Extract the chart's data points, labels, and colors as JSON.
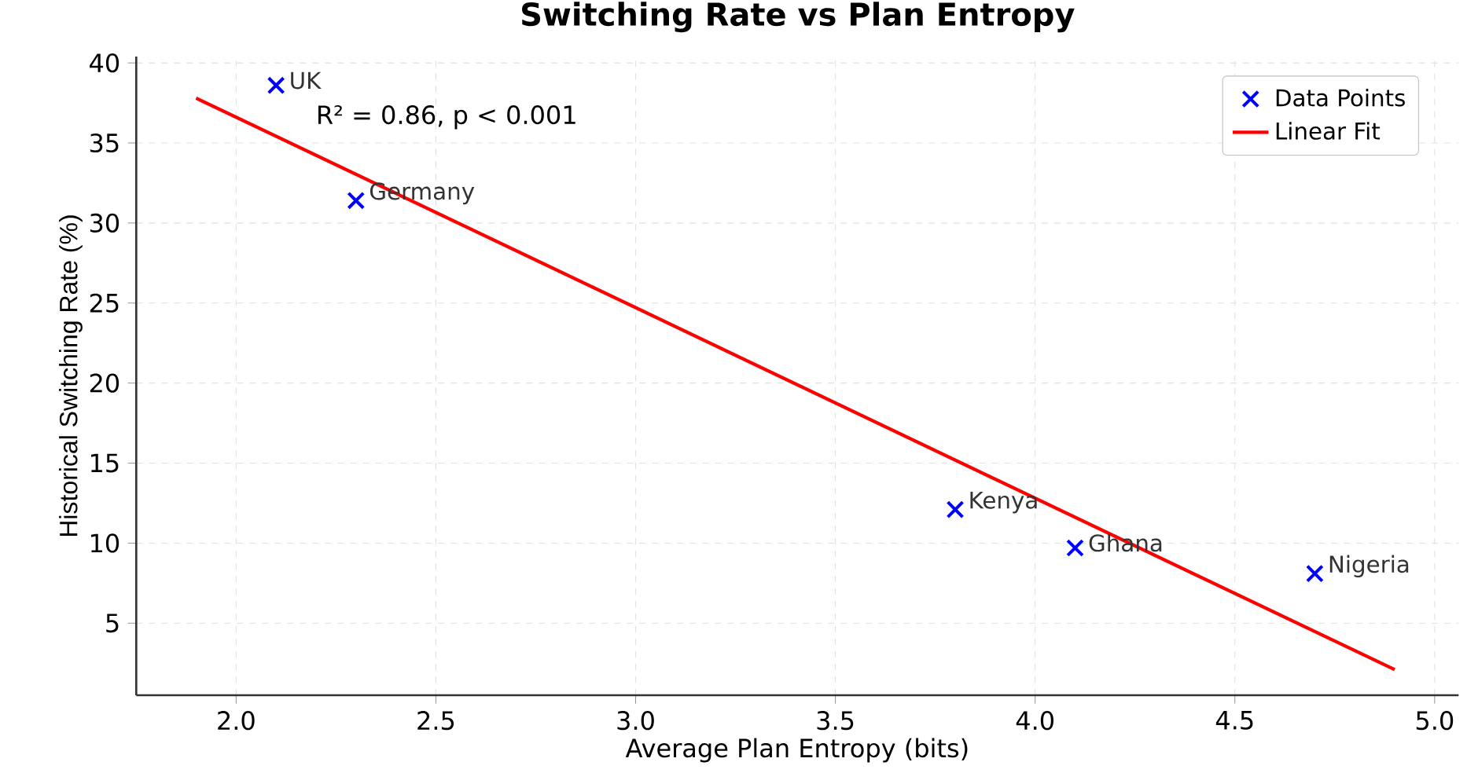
{
  "chart_data": {
    "type": "scatter",
    "title": "Switching Rate vs Plan Entropy",
    "xlabel": "Average Plan Entropy (bits)",
    "ylabel": "Historical Switching Rate (%)",
    "x": [
      2.1,
      2.3,
      3.8,
      4.1,
      4.7
    ],
    "series": [
      {
        "name": "Data Points",
        "color": "#0000ff",
        "marker": "cross",
        "values": [
          38.6,
          31.4,
          12.1,
          9.7,
          8.1
        ]
      },
      {
        "name": "Linear Fit",
        "type": "line",
        "color": "#ff0000",
        "line_style": "solid",
        "marker": "none",
        "x": [
          1.9,
          4.9
        ],
        "values": [
          37.8,
          2.1
        ]
      }
    ],
    "annotations": [
      {
        "text": "UK",
        "x": 2.1,
        "y": 38.6
      },
      {
        "text": "Germany",
        "x": 2.3,
        "y": 31.4
      },
      {
        "text": "Kenya",
        "x": 3.8,
        "y": 12.1
      },
      {
        "text": "Ghana",
        "x": 4.1,
        "y": 9.7
      },
      {
        "text": "Nigeria",
        "x": 4.7,
        "y": 8.1
      },
      "R² = 0.86, p < 0.001"
    ],
    "xlim": [
      1.75,
      5.06
    ],
    "ylim": [
      0.5,
      40.4
    ],
    "xticks": [
      {
        "value": 2,
        "label": "2.0"
      },
      2.5,
      {
        "value": 3,
        "label": "3.0"
      },
      3.5,
      {
        "value": 4,
        "label": "4.0"
      },
      4.5,
      {
        "value": 5,
        "label": "5.0"
      }
    ],
    "yticks": [
      5,
      10,
      15,
      20,
      25,
      30,
      35,
      40
    ],
    "grid": true,
    "legend": "top right"
  }
}
